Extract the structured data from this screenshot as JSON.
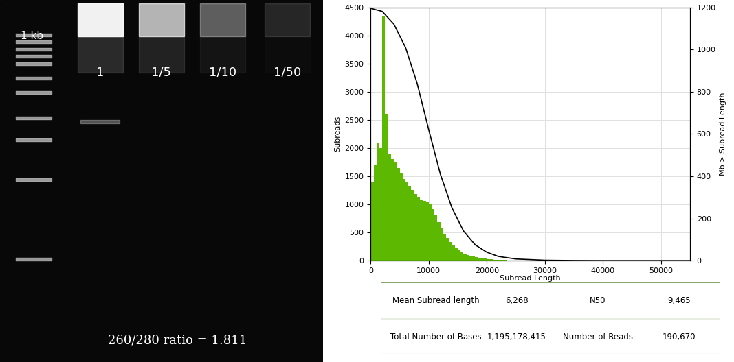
{
  "gel": {
    "ladder_label": "1 kb",
    "lanes": [
      "1",
      "1/5",
      "1/10",
      "1/50"
    ],
    "ratio_text": "260/280 ratio = 1.811"
  },
  "chart_data": {
    "type": "histogram",
    "bins": [
      0,
      500,
      1000,
      1500,
      2000,
      2500,
      3000,
      3500,
      4000,
      4500,
      5000,
      5500,
      6000,
      6500,
      7000,
      7500,
      8000,
      8500,
      9000,
      9500,
      10000,
      10500,
      11000,
      11500,
      12000,
      12500,
      13000,
      13500,
      14000,
      14500,
      15000,
      15500,
      16000,
      16500,
      17000,
      17500,
      18000,
      18500,
      19000,
      19500,
      20000,
      20500,
      21000,
      21500,
      22000,
      22500,
      23000,
      23500,
      24000,
      24500,
      25000,
      25500,
      26000,
      26500,
      27000,
      27500,
      28000,
      28500,
      29000,
      29500,
      30000
    ],
    "counts": [
      1400,
      1700,
      2100,
      2000,
      4350,
      2600,
      1900,
      1800,
      1750,
      1650,
      1550,
      1450,
      1400,
      1320,
      1250,
      1180,
      1120,
      1080,
      1060,
      1050,
      1000,
      920,
      800,
      680,
      580,
      480,
      400,
      330,
      270,
      220,
      180,
      150,
      120,
      100,
      85,
      70,
      60,
      50,
      40,
      35,
      30,
      25,
      20,
      17,
      14,
      12,
      10,
      8,
      6,
      5,
      4,
      3,
      3,
      2,
      2,
      2,
      1,
      1,
      1,
      1
    ],
    "color": "#5cb800",
    "x_label": "Subread Length",
    "y_label": "Subreads",
    "y2_label": "Mb > Subread Length",
    "xlim": [
      0,
      55000
    ],
    "xticks": [
      0,
      10000,
      20000,
      30000,
      40000,
      50000
    ],
    "ylim": [
      0,
      4500
    ],
    "yticks": [
      0,
      500,
      1000,
      1500,
      2000,
      2500,
      3000,
      3500,
      4000,
      4500
    ],
    "y2lim": [
      0,
      1200
    ],
    "y2ticks": [
      0,
      200,
      400,
      600,
      800,
      1000,
      1200
    ],
    "grid": true,
    "series": [
      {
        "type": "line",
        "axis": "y2",
        "color": "#000000",
        "x": [
          0,
          2000,
          4000,
          6000,
          8000,
          10000,
          12000,
          14000,
          16000,
          18000,
          20000,
          22000,
          25000,
          30000,
          35000,
          40000,
          55000
        ],
        "values": [
          1195,
          1180,
          1120,
          1010,
          840,
          620,
          410,
          250,
          140,
          75,
          40,
          20,
          8,
          2,
          0.5,
          0,
          0
        ]
      }
    ]
  },
  "table": {
    "rows": [
      [
        "Mean Subread length",
        "6,268",
        "N50",
        "9,465"
      ],
      [
        "Total Number of Bases",
        "1,195,178,415",
        "Number of Reads",
        "190,670"
      ]
    ]
  }
}
